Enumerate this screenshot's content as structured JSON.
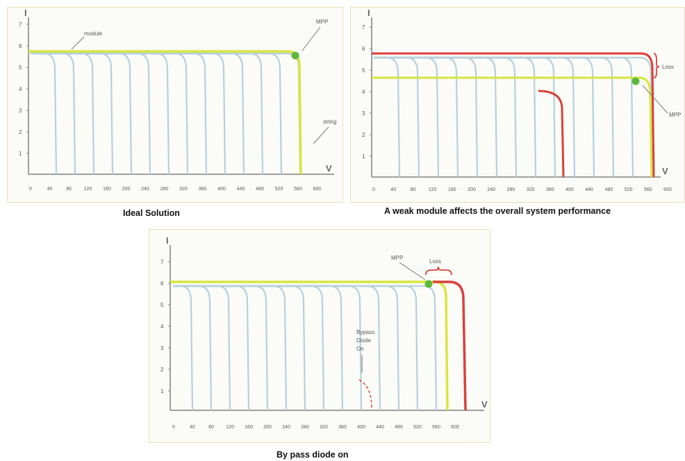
{
  "colors": {
    "module_curve": "#b6d0dc",
    "string_curve": "#d7e63e",
    "weak_curve": "#d8403a",
    "mpp_dot": "#5cb83a",
    "axis": "#7f7f7f",
    "panel_border": "#e9dfb5"
  },
  "diagrams": [
    {
      "caption": "Ideal Solution",
      "axis_i_label": "I",
      "axis_v_label": "V",
      "y_ticks": [
        "1",
        "2",
        "3",
        "4",
        "5",
        "6",
        "7"
      ],
      "x_ticks": [
        "0",
        "40",
        "80",
        "120",
        "160",
        "200",
        "240",
        "280",
        "320",
        "360",
        "400",
        "440",
        "480",
        "520",
        "560",
        "600"
      ],
      "annotations": {
        "module": "module",
        "mpp": "MPP",
        "string": "string"
      }
    },
    {
      "caption": "A weak module affects the overall system performance",
      "axis_i_label": "I",
      "axis_v_label": "V",
      "y_ticks": [
        "1",
        "2",
        "3",
        "4",
        "5",
        "6",
        "7"
      ],
      "x_ticks": [
        "0",
        "40",
        "80",
        "120",
        "160",
        "200",
        "240",
        "280",
        "320",
        "360",
        "400",
        "440",
        "480",
        "520",
        "560",
        "600"
      ],
      "annotations": {
        "loss": "Loss",
        "mpp": "MPP"
      }
    },
    {
      "caption": "By pass diode on",
      "axis_i_label": "I",
      "axis_v_label": "V",
      "y_ticks": [
        "1",
        "2",
        "3",
        "4",
        "5",
        "6",
        "7"
      ],
      "x_ticks": [
        "0",
        "40",
        "80",
        "120",
        "160",
        "200",
        "240",
        "280",
        "320",
        "360",
        "400",
        "440",
        "480",
        "520",
        "560",
        "600"
      ],
      "annotations": {
        "mpp": "MPP",
        "loss": "Loss",
        "bypass_1": "Bypass",
        "bypass_2": "Diode",
        "bypass_3": "On"
      }
    }
  ]
}
